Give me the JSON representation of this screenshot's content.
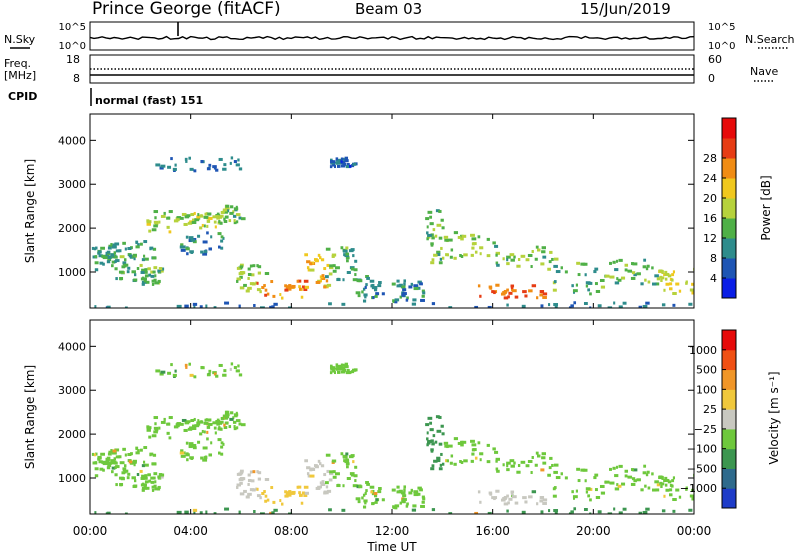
{
  "header": {
    "station": "Prince George (fitACF)",
    "beam": "Beam 03",
    "date": "15/Jun/2019"
  },
  "status_panel": {
    "nsky_label": "N.Sky",
    "nsky_ticks": [
      "10^5",
      "10^0"
    ],
    "nsearch_label": "N.Search",
    "nsearch_ticks": [
      "10^5",
      "10^0"
    ],
    "freq_label": "Freq.",
    "freq_unit": "[MHz]",
    "freq_ticks": [
      "18",
      "8"
    ],
    "nave_label": "Nave",
    "nave_ticks": [
      "60",
      "0"
    ],
    "cpid_label": "CPID",
    "cpid_text": "normal (fast) 151"
  },
  "chart_data": [
    {
      "type": "heatmap",
      "name": "power",
      "ylabel": "Slant Range [km]",
      "ylim": [
        180,
        4600
      ],
      "yticks": [
        "1000",
        "2000",
        "3000",
        "4000"
      ],
      "xlim": [
        0,
        24
      ],
      "colorbar": {
        "label": "Power [dB]",
        "ticks": [
          "4",
          "8",
          "12",
          "16",
          "20",
          "24",
          "28"
        ],
        "colors": [
          "#0a1ee6",
          "#1e55b4",
          "#2e8c8c",
          "#4fb047",
          "#b6d23c",
          "#f0c81e",
          "#f08c14",
          "#e63c14",
          "#e60a0a"
        ]
      }
    },
    {
      "type": "heatmap",
      "name": "velocity",
      "ylabel": "Slant Range [km]",
      "ylim": [
        180,
        4600
      ],
      "yticks": [
        "1000",
        "2000",
        "3000",
        "4000"
      ],
      "xlim": [
        0,
        24
      ],
      "xticks": [
        "00:00",
        "04:00",
        "08:00",
        "12:00",
        "16:00",
        "20:00",
        "00:00"
      ],
      "xlabel": "Time UT",
      "colorbar": {
        "label": "Velocity [m s⁻¹]",
        "ticks": [
          "1000",
          "500",
          "100",
          "25",
          "−25",
          "−100",
          "−500",
          "−1000"
        ],
        "colors": [
          "#1e3cc8",
          "#2e6a8c",
          "#3c9650",
          "#6ec83c",
          "#c8c8c0",
          "#f0c83c",
          "#f09628",
          "#f05014",
          "#e60a0a"
        ]
      }
    }
  ]
}
